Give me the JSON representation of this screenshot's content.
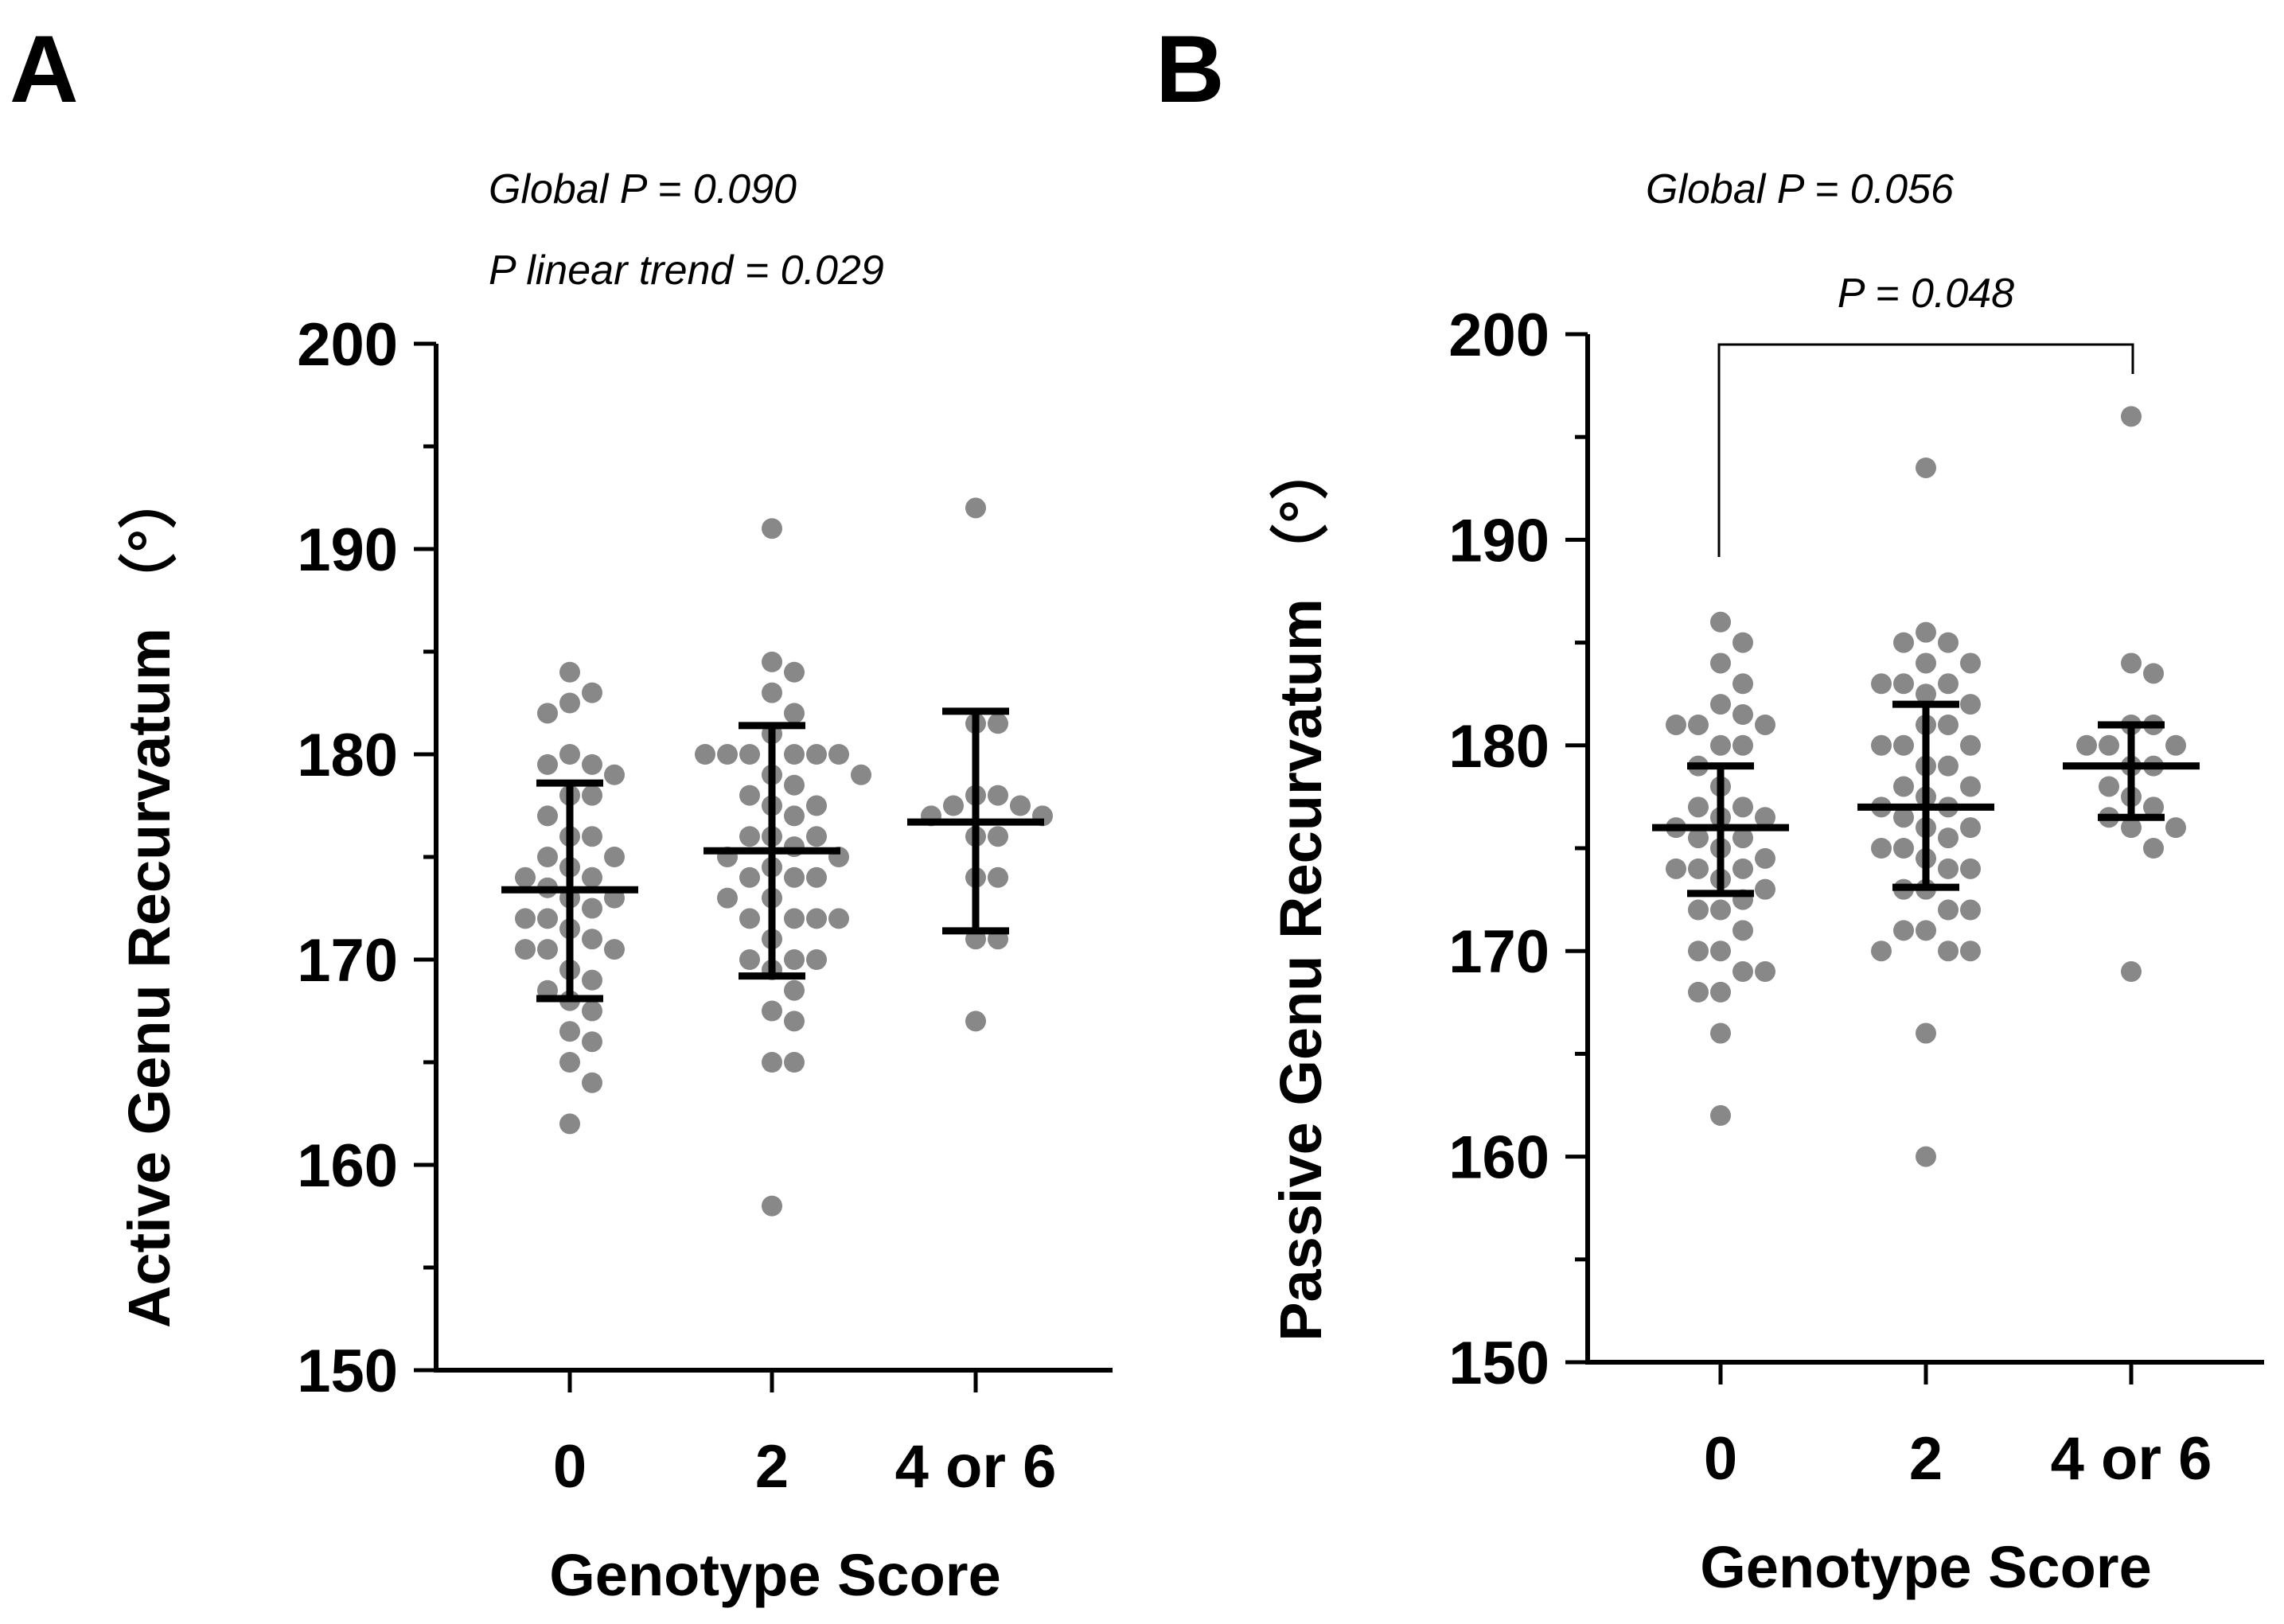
{
  "chart_data": [
    {
      "panel": "A",
      "type": "scatter",
      "annotations": [
        "Global P = 0.090",
        "P linear trend = 0.029"
      ],
      "ylabel": "Active Genu Recurvatum （°）",
      "xlabel": "Genotype Score",
      "ylim": [
        150,
        200
      ],
      "yticks": [
        150,
        160,
        170,
        180,
        190,
        200
      ],
      "categories": [
        "0",
        "2",
        "4 or 6"
      ],
      "series": [
        {
          "name": "0",
          "mean": 173.4,
          "lower": 168.1,
          "upper": 178.6,
          "points": [
            184,
            183,
            182.5,
            182,
            180,
            179.5,
            179.5,
            179,
            178,
            178,
            177,
            176,
            176,
            175,
            175,
            174.5,
            174,
            174,
            173.5,
            173,
            173,
            172.5,
            172,
            172,
            171.5,
            171,
            170.5,
            170.5,
            170.5,
            169.5,
            169,
            168.5,
            168,
            167.5,
            166.5,
            166,
            165,
            164,
            162
          ]
        },
        {
          "name": "2",
          "mean": 175.3,
          "lower": 169.2,
          "upper": 181.4,
          "points": [
            191,
            184.5,
            184,
            183,
            182,
            181,
            180,
            180,
            180,
            180,
            180,
            180,
            179,
            179,
            178.5,
            178,
            177.5,
            177.5,
            177,
            176,
            176,
            176,
            175.5,
            175,
            175,
            174.5,
            174,
            174,
            174,
            173,
            173,
            172,
            172,
            172,
            172,
            171,
            170,
            170,
            170,
            169.5,
            168.5,
            167.5,
            167,
            165,
            165,
            158
          ]
        },
        {
          "name": "4 or 6",
          "mean": 176.7,
          "lower": 171.4,
          "upper": 182.1,
          "points": [
            192,
            181.5,
            181.5,
            178,
            178,
            177.5,
            177.5,
            177,
            177,
            176,
            176,
            174,
            174,
            171,
            171,
            167
          ]
        }
      ]
    },
    {
      "panel": "B",
      "type": "scatter",
      "annotations": [
        "Global P = 0.056",
        "P = 0.048"
      ],
      "ylabel": "Passive Genu Recurvatum （°）",
      "xlabel": "Genotype Score",
      "ylim": [
        150,
        200
      ],
      "yticks": [
        150,
        160,
        170,
        180,
        190,
        200
      ],
      "categories": [
        "0",
        "2",
        "4 or 6"
      ],
      "comparison": {
        "from": "0",
        "to": "4 or 6",
        "label": "P = 0.048"
      },
      "series": [
        {
          "name": "0",
          "mean": 176.0,
          "lower": 172.8,
          "upper": 179.0,
          "points": [
            186,
            185,
            184,
            183,
            182,
            181.5,
            181,
            181,
            181,
            180,
            180,
            179,
            178,
            177,
            177,
            176.5,
            176.5,
            176,
            175.5,
            175.5,
            175,
            174.5,
            174,
            174,
            174,
            173.5,
            173,
            172.5,
            172,
            172,
            171,
            170,
            170,
            169,
            169,
            168,
            168,
            166,
            162
          ]
        },
        {
          "name": "2",
          "mean": 177.0,
          "lower": 173.1,
          "upper": 182.0,
          "points": [
            193.5,
            185.5,
            185,
            185,
            184,
            184,
            183,
            183,
            183,
            182.5,
            182,
            181,
            181,
            180,
            180,
            180,
            179,
            179,
            178,
            178,
            177.5,
            177,
            177,
            176.5,
            176,
            176,
            175.5,
            175,
            175,
            174.5,
            174,
            174,
            173,
            173,
            172,
            172,
            171,
            171,
            170,
            170,
            170,
            166,
            160
          ]
        },
        {
          "name": "4 or 6",
          "mean": 179.0,
          "lower": 176.5,
          "upper": 181.0,
          "points": [
            196,
            184,
            183.5,
            181,
            181,
            180,
            180,
            180,
            179,
            179,
            178,
            177.5,
            177,
            176.5,
            176,
            176,
            175,
            169
          ]
        }
      ]
    }
  ]
}
